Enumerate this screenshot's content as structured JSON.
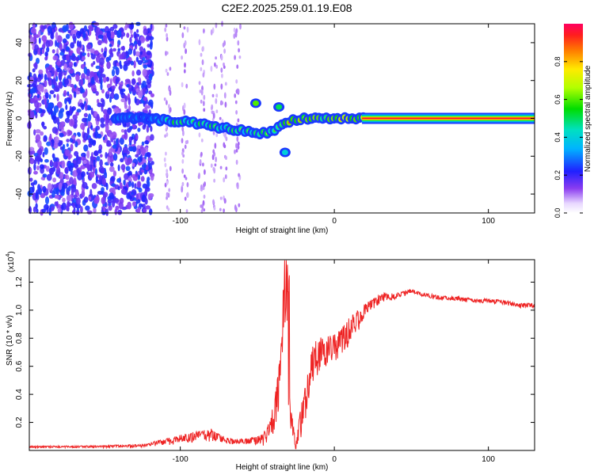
{
  "title": "C2E2.2025.259.01.19.E08",
  "chart_data": [
    {
      "type": "heatmap",
      "xlabel": "Height of straight line (km)",
      "ylabel": "Frequency (Hz)",
      "xlim": [
        -198,
        130
      ],
      "ylim": [
        -50,
        50
      ],
      "xticks": [
        -100,
        0,
        100
      ],
      "yticks": [
        -40,
        -20,
        0,
        20,
        40
      ],
      "colorbar": {
        "label": "Normalized spectral amplitude",
        "range": [
          0,
          1
        ],
        "ticks": [
          0.0,
          0.2,
          0.4,
          0.6,
          0.8
        ],
        "tick_labels": [
          "0.0",
          "0.2",
          "0.4",
          "0.6",
          "0.8"
        ]
      },
      "ridge": {
        "x": [
          -140,
          -125,
          -110,
          -95,
          -80,
          -65,
          -55,
          -45,
          -38,
          -33,
          -28,
          -20,
          -10,
          0,
          10,
          20,
          130
        ],
        "y": [
          0,
          0,
          -1,
          -2,
          -4,
          -6,
          -7,
          -8,
          -6,
          -3,
          -1,
          0,
          0,
          0,
          0,
          0,
          0
        ]
      },
      "blobs": [
        {
          "x": -51,
          "y": 8,
          "amplitude": 0.6
        },
        {
          "x": -32,
          "y": -18,
          "amplitude": 0.4
        },
        {
          "x": -36,
          "y": 6,
          "amplitude": 0.5
        }
      ],
      "noise_region_x": [
        -198,
        -118
      ]
    },
    {
      "type": "line",
      "xlabel": "Height of straight line (km)",
      "ylabel": "SNR (10 * v/v)",
      "multiplier_label": "(x10",
      "multiplier_exponent": "4",
      "xlim": [
        -198,
        130
      ],
      "ylim": [
        0.0,
        1.36
      ],
      "xticks": [
        -100,
        0,
        100
      ],
      "yticks": [
        0.2,
        0.4,
        0.6,
        0.8,
        1.0,
        1.2
      ],
      "ytick_labels": [
        "0.2",
        "0.4",
        "0.6",
        "0.8",
        "1.0",
        "1.2"
      ],
      "color": "#ee2222",
      "envelope": {
        "x": [
          -198,
          -150,
          -125,
          -110,
          -95,
          -80,
          -70,
          -60,
          -50,
          -44,
          -40,
          -36,
          -33,
          -31,
          -30,
          -28,
          -25,
          -22,
          -18,
          -15,
          -10,
          0,
          10,
          20,
          30,
          40,
          50,
          60,
          70,
          80,
          90,
          100,
          110,
          120,
          130
        ],
        "y": [
          0.03,
          0.035,
          0.045,
          0.08,
          0.12,
          0.15,
          0.09,
          0.08,
          0.1,
          0.15,
          0.3,
          0.6,
          0.95,
          1.3,
          0.6,
          0.3,
          0.05,
          0.3,
          0.5,
          0.75,
          0.8,
          0.83,
          0.95,
          1.05,
          1.12,
          1.12,
          1.15,
          1.12,
          1.1,
          1.1,
          1.08,
          1.08,
          1.07,
          1.05,
          1.05
        ]
      },
      "noise": {
        "x": [
          -198,
          -150,
          -125,
          -110,
          -95,
          -80,
          -70,
          -60,
          -50,
          -44,
          -40,
          -36,
          -33,
          -31,
          -30,
          -28,
          -25,
          -22,
          -18,
          -15,
          -10,
          0,
          10,
          20,
          30,
          40,
          50,
          60,
          70,
          80,
          90,
          100,
          110,
          120,
          130
        ],
        "y": [
          0.01,
          0.015,
          0.02,
          0.04,
          0.06,
          0.08,
          0.04,
          0.04,
          0.06,
          0.1,
          0.2,
          0.3,
          0.25,
          0.2,
          0.3,
          0.15,
          0.05,
          0.2,
          0.25,
          0.25,
          0.25,
          0.2,
          0.18,
          0.1,
          0.06,
          0.04,
          0.03,
          0.03,
          0.03,
          0.03,
          0.03,
          0.03,
          0.03,
          0.03,
          0.03
        ]
      }
    }
  ]
}
